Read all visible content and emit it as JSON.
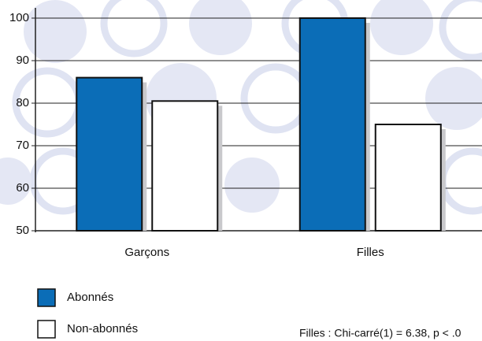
{
  "chart_data": {
    "type": "bar",
    "categories": [
      "Garçons",
      "Filles"
    ],
    "series": [
      {
        "name": "Abonnés",
        "color": "#0b6db7",
        "values": [
          86,
          100
        ]
      },
      {
        "name": "Non-abonnés",
        "color": "#ffffff",
        "values": [
          80.5,
          75
        ]
      }
    ],
    "ylim": [
      50,
      100
    ],
    "yticks": [
      50,
      60,
      70,
      80,
      90,
      100
    ],
    "grid": true,
    "annotation": "Filles : Chi-carré(1) = 6.38, p < .0"
  }
}
